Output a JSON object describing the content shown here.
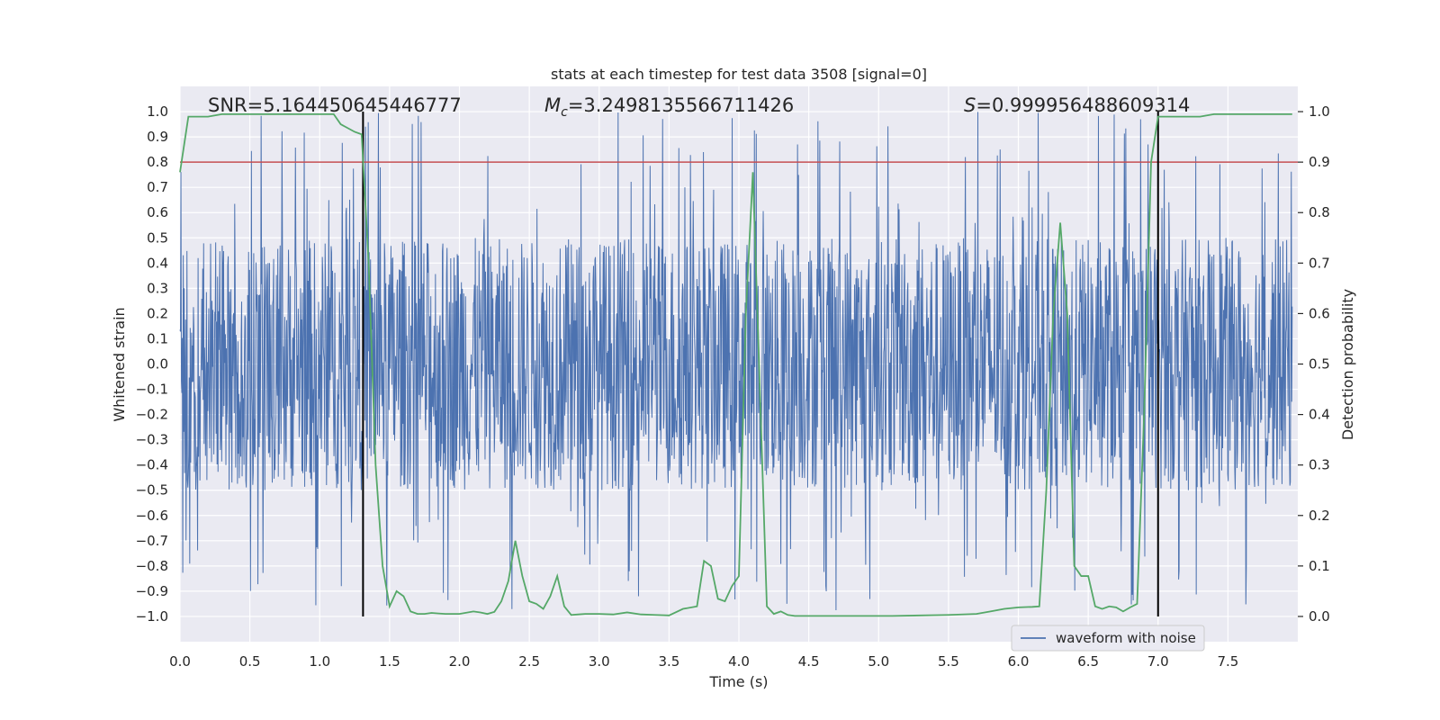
{
  "chart_data": {
    "type": "line",
    "title": "stats at each timestep for test data 3508 [signal=0]",
    "xlabel": "Time (s)",
    "ylabel_left": "Whitened strain",
    "ylabel_right": "Detection probability",
    "xlim": [
      0.0,
      8.0
    ],
    "ylim_left": [
      -1.1,
      1.1
    ],
    "ylim_right": [
      -0.05,
      1.05
    ],
    "xticks": [
      "0.0",
      "0.5",
      "1.0",
      "1.5",
      "2.0",
      "2.5",
      "3.0",
      "3.5",
      "4.0",
      "4.5",
      "5.0",
      "5.5",
      "6.0",
      "6.5",
      "7.0",
      "7.5"
    ],
    "yticks_left": [
      "1.0",
      "0.9",
      "0.8",
      "0.7",
      "0.6",
      "0.5",
      "0.4",
      "0.3",
      "0.2",
      "0.1",
      "0.0",
      "−0.1",
      "−0.2",
      "−0.3",
      "−0.4",
      "−0.5",
      "−0.6",
      "−0.7",
      "−0.8",
      "−0.9",
      "−1.0"
    ],
    "yticks_right": [
      "1.0",
      "0.9",
      "0.8",
      "0.7",
      "0.6",
      "0.5",
      "0.4",
      "0.3",
      "0.2",
      "0.1",
      "0.0"
    ],
    "annotations": {
      "snr": "SNR=5.164450645446777",
      "mc_symbol": "M",
      "mc_sub": "c",
      "mc_value": "=3.2498135566711426",
      "s_symbol": "S",
      "s_value": "=0.999956488609314"
    },
    "threshold_level": 0.9,
    "vertical_markers": [
      1.31,
      7.0
    ],
    "legend_label": "waveform with noise",
    "legend_location": "lower-right",
    "series": [
      {
        "name": "waveform with noise",
        "axis": "left",
        "color": "#4c72b0",
        "kind": "noise",
        "duration_s": 8.0,
        "typical_amplitude": 0.5,
        "peak_amplitude": 1.0
      },
      {
        "name": "detection probability",
        "axis": "right",
        "color": "#55a868",
        "x": [
          0.0,
          0.06,
          0.12,
          0.2,
          0.3,
          0.4,
          0.5,
          0.6,
          0.7,
          0.8,
          0.9,
          1.0,
          1.1,
          1.15,
          1.25,
          1.3,
          1.35,
          1.4,
          1.45,
          1.5,
          1.55,
          1.6,
          1.65,
          1.7,
          1.75,
          1.8,
          1.85,
          1.9,
          2.0,
          2.1,
          2.15,
          2.2,
          2.25,
          2.3,
          2.35,
          2.4,
          2.45,
          2.5,
          2.55,
          2.6,
          2.65,
          2.7,
          2.75,
          2.8,
          2.85,
          2.9,
          2.95,
          3.0,
          3.1,
          3.2,
          3.3,
          3.4,
          3.5,
          3.6,
          3.7,
          3.75,
          3.8,
          3.85,
          3.9,
          3.95,
          4.0,
          4.05,
          4.1,
          4.15,
          4.2,
          4.25,
          4.3,
          4.35,
          4.4,
          4.5,
          4.7,
          4.9,
          5.1,
          5.3,
          5.5,
          5.7,
          5.8,
          5.9,
          6.0,
          6.1,
          6.15,
          6.2,
          6.25,
          6.3,
          6.35,
          6.4,
          6.45,
          6.5,
          6.55,
          6.6,
          6.65,
          6.7,
          6.75,
          6.8,
          6.85,
          6.9,
          6.95,
          7.0,
          7.05,
          7.1,
          7.15,
          7.2,
          7.25,
          7.3,
          7.4,
          7.6,
          7.8,
          7.96
        ],
        "values": [
          0.88,
          0.99,
          0.99,
          0.99,
          0.995,
          0.995,
          0.995,
          0.995,
          0.995,
          0.995,
          0.995,
          0.995,
          0.995,
          0.975,
          0.96,
          0.955,
          0.7,
          0.3,
          0.1,
          0.02,
          0.05,
          0.04,
          0.01,
          0.005,
          0.005,
          0.007,
          0.006,
          0.005,
          0.005,
          0.01,
          0.008,
          0.005,
          0.009,
          0.03,
          0.07,
          0.15,
          0.08,
          0.03,
          0.025,
          0.015,
          0.04,
          0.08,
          0.02,
          0.003,
          0.004,
          0.005,
          0.005,
          0.005,
          0.004,
          0.008,
          0.004,
          0.003,
          0.002,
          0.015,
          0.02,
          0.11,
          0.1,
          0.035,
          0.03,
          0.06,
          0.08,
          0.6,
          0.88,
          0.45,
          0.02,
          0.005,
          0.01,
          0.003,
          0.001,
          0.001,
          0.001,
          0.001,
          0.001,
          0.002,
          0.003,
          0.005,
          0.01,
          0.015,
          0.018,
          0.019,
          0.02,
          0.25,
          0.6,
          0.78,
          0.6,
          0.1,
          0.08,
          0.08,
          0.02,
          0.015,
          0.02,
          0.018,
          0.01,
          0.018,
          0.025,
          0.4,
          0.9,
          0.99,
          0.99,
          0.99,
          0.99,
          0.99,
          0.99,
          0.99,
          0.995,
          0.995,
          0.995,
          0.995
        ]
      }
    ]
  },
  "colors": {
    "plot_background": "#eaeaf2",
    "grid": "#ffffff",
    "noise": "#4c72b0",
    "probability": "#55a868",
    "threshold": "#c44e52",
    "marker": "#000000",
    "text": "#262626"
  }
}
